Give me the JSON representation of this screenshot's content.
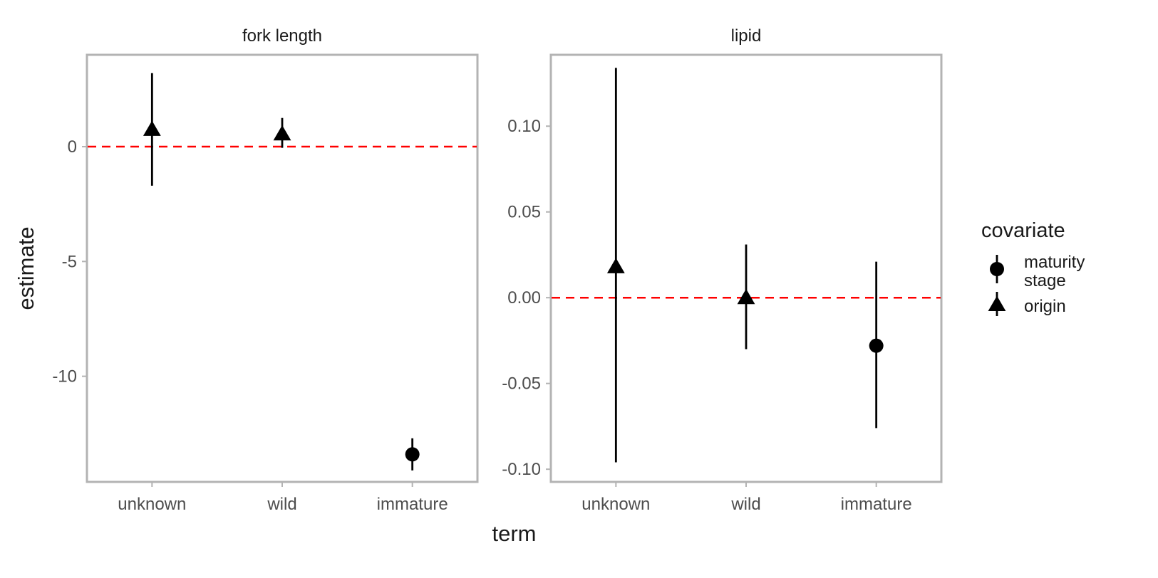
{
  "chart_data": {
    "type": "scatter",
    "xlabel": "term",
    "ylabel": "estimate",
    "categories": [
      "unknown",
      "wild",
      "immature"
    ],
    "legend": {
      "title": "covariate",
      "position": "right",
      "items": [
        {
          "label": "maturity stage",
          "shape": "circle"
        },
        {
          "label": "origin",
          "shape": "triangle"
        }
      ]
    },
    "reference_line": {
      "y": 0,
      "color": "#ff0000",
      "style": "dashed"
    },
    "panels": [
      {
        "title": "fork length",
        "ylim": [
          -14.6,
          4.0
        ],
        "yticks": [
          {
            "value": 0,
            "label": "0"
          },
          {
            "value": -5,
            "label": "-5"
          },
          {
            "value": -10,
            "label": "-10"
          }
        ],
        "points": [
          {
            "term": "unknown",
            "covariate": "origin",
            "estimate": 0.75,
            "low": -1.7,
            "high": 3.2
          },
          {
            "term": "wild",
            "covariate": "origin",
            "estimate": 0.55,
            "low": -0.05,
            "high": 1.25
          },
          {
            "term": "immature",
            "covariate": "maturity stage",
            "estimate": -13.4,
            "low": -14.1,
            "high": -12.7
          }
        ]
      },
      {
        "title": "lipid",
        "ylim": [
          -0.1074,
          0.1416
        ],
        "yticks": [
          {
            "value": 0.1,
            "label": "0.10"
          },
          {
            "value": 0.05,
            "label": "0.05"
          },
          {
            "value": 0.0,
            "label": "0.00"
          },
          {
            "value": -0.05,
            "label": "-0.05"
          },
          {
            "value": -0.1,
            "label": "-0.10"
          }
        ],
        "points": [
          {
            "term": "unknown",
            "covariate": "origin",
            "estimate": 0.018,
            "low": -0.096,
            "high": 0.134
          },
          {
            "term": "wild",
            "covariate": "origin",
            "estimate": 0.0,
            "low": -0.03,
            "high": 0.031
          },
          {
            "term": "immature",
            "covariate": "maturity stage",
            "estimate": -0.028,
            "low": -0.076,
            "high": 0.021
          }
        ]
      }
    ]
  }
}
